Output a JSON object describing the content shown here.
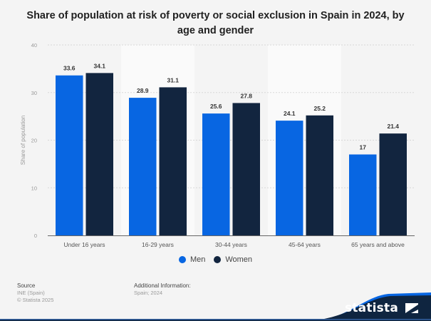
{
  "chart_data": {
    "type": "bar",
    "title": "Share of population at risk of poverty or social exclusion in Spain in 2024, by age and gender",
    "xlabel": "",
    "ylabel": "Share of population",
    "ylim": [
      0,
      40
    ],
    "yticks": [
      0,
      10,
      20,
      30,
      40
    ],
    "grid": true,
    "categories": [
      "Under 16 years",
      "16-29 years",
      "30-44 years",
      "45-64 years",
      "65 years and above"
    ],
    "series": [
      {
        "name": "Men",
        "color": "#0866e2",
        "values": [
          33.6,
          28.9,
          25.6,
          24.1,
          17
        ]
      },
      {
        "name": "Women",
        "color": "#12253f",
        "values": [
          34.1,
          31.1,
          27.8,
          25.2,
          21.4
        ]
      }
    ],
    "legend_position": "bottom-center"
  },
  "footer": {
    "source_heading": "Source",
    "source_lines": [
      "INE (Spain)",
      "© Statista 2025"
    ],
    "additional_heading": "Additional Information:",
    "additional_lines": [
      "Spain; 2024"
    ]
  },
  "brand": {
    "name": "statista"
  }
}
